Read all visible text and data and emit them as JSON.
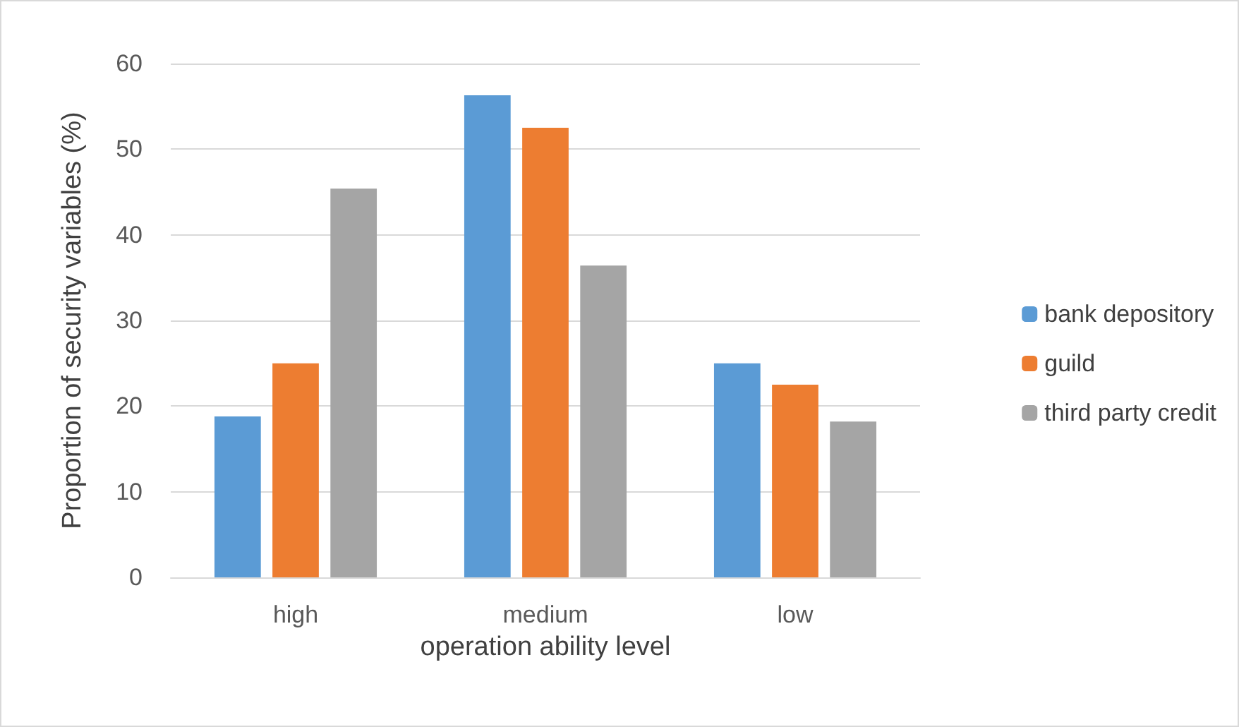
{
  "chart_data": {
    "type": "bar",
    "xlabel": "operation ability level",
    "ylabel": "Proportion of security variables (%)",
    "categories": [
      "high",
      "medium",
      "low"
    ],
    "series": [
      {
        "name": "bank depository",
        "color": "#5b9bd5",
        "values": [
          18.8,
          56.3,
          25
        ]
      },
      {
        "name": "guild",
        "color": "#ed7d31",
        "values": [
          25,
          52.5,
          22.5
        ]
      },
      {
        "name": "third party credit",
        "color": "#a5a5a5",
        "values": [
          45.4,
          36.4,
          18.2
        ]
      }
    ],
    "ylim": [
      0,
      60
    ],
    "yticks": [
      0,
      10,
      20,
      30,
      40,
      50,
      60
    ],
    "grid": "y",
    "legend": "right"
  }
}
